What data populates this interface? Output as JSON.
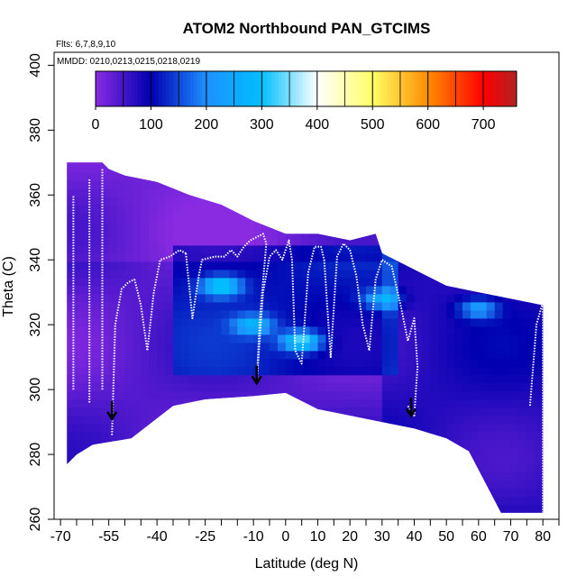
{
  "chart_data": {
    "type": "heatmap",
    "title": "ATOM2 Northbound PAN_GTCIMS",
    "subtitle_flights": "Flts: 6,7,8,9,10",
    "subtitle_dates": "MMDD: 0210,0213,0215,0218,0219",
    "xlabel": "Latitude (deg N)",
    "ylabel": "Theta (C)",
    "xlim": [
      -72,
      85
    ],
    "ylim": [
      260,
      404
    ],
    "x_ticks": [
      -70,
      -55,
      -40,
      -25,
      -10,
      0,
      10,
      20,
      30,
      40,
      50,
      60,
      70,
      80
    ],
    "x_minor_ticks": [
      -65,
      -60,
      -50,
      -45,
      -35,
      -30,
      -20,
      -15,
      -5,
      5,
      15,
      25,
      35,
      45,
      55,
      65,
      75,
      85
    ],
    "y_ticks": [
      260,
      280,
      300,
      320,
      340,
      360,
      380,
      400
    ],
    "colorbar": {
      "min": 0,
      "max": 760,
      "ticks": [
        0,
        100,
        200,
        300,
        400,
        500,
        600,
        700
      ],
      "colors": [
        "#8a2be2",
        "#0000b0",
        "#1e90ff",
        "#00bfff",
        "#ffffff",
        "#ffff66",
        "#ff8c00",
        "#ff0000",
        "#b22222"
      ]
    },
    "boundary": {
      "top": [
        [
          -68,
          370
        ],
        [
          -57,
          370
        ],
        [
          -55,
          368
        ],
        [
          -50,
          366
        ],
        [
          -40,
          364
        ],
        [
          -30,
          360
        ],
        [
          -20,
          357
        ],
        [
          -10,
          352
        ],
        [
          0,
          348
        ],
        [
          10,
          348
        ],
        [
          20,
          346
        ],
        [
          28,
          348
        ],
        [
          30,
          342
        ],
        [
          40,
          337
        ],
        [
          50,
          332
        ],
        [
          60,
          330
        ],
        [
          70,
          328
        ],
        [
          80,
          326
        ]
      ],
      "bottom": [
        [
          -68,
          277
        ],
        [
          -65,
          280
        ],
        [
          -60,
          283
        ],
        [
          -48,
          285
        ],
        [
          -35,
          295
        ],
        [
          -25,
          297
        ],
        [
          -10,
          298
        ],
        [
          0,
          299
        ],
        [
          10,
          294
        ],
        [
          20,
          292
        ],
        [
          30,
          290
        ],
        [
          40,
          288
        ],
        [
          50,
          285
        ],
        [
          57,
          281
        ],
        [
          67,
          262
        ],
        [
          80,
          262
        ]
      ]
    },
    "flight_tracks": [
      [
        [
          -66,
          300
        ],
        [
          -66,
          360
        ]
      ],
      [
        [
          -61,
          296
        ],
        [
          -61,
          365
        ]
      ],
      [
        [
          -57,
          300
        ],
        [
          -57,
          368
        ]
      ],
      [
        [
          -54,
          286
        ],
        [
          -53,
          320
        ],
        [
          -51,
          331
        ],
        [
          -49,
          333
        ],
        [
          -47,
          334
        ]
      ],
      [
        [
          -47,
          334
        ],
        [
          -45,
          326
        ],
        [
          -43,
          312
        ],
        [
          -41,
          330
        ],
        [
          -39,
          340
        ],
        [
          -36,
          341
        ],
        [
          -33,
          343
        ],
        [
          -31,
          342
        ]
      ],
      [
        [
          -31,
          342
        ],
        [
          -29,
          322
        ],
        [
          -27,
          335
        ],
        [
          -26,
          340
        ],
        [
          -22,
          341
        ],
        [
          -19,
          341
        ],
        [
          -17,
          343
        ],
        [
          -15,
          341
        ],
        [
          -13,
          344
        ],
        [
          -11,
          346
        ],
        [
          -9,
          347
        ],
        [
          -7,
          348
        ],
        [
          -6,
          345
        ]
      ],
      [
        [
          -6,
          345
        ],
        [
          -8,
          322
        ],
        [
          -9,
          302
        ],
        [
          -7,
          330
        ],
        [
          -5,
          341
        ],
        [
          -3,
          343
        ],
        [
          -1,
          340
        ],
        [
          1,
          346
        ],
        [
          2,
          340
        ],
        [
          3,
          312
        ],
        [
          5,
          308
        ],
        [
          7,
          336
        ],
        [
          9,
          344
        ],
        [
          11,
          344
        ],
        [
          12,
          340
        ]
      ],
      [
        [
          12,
          340
        ],
        [
          14,
          310
        ],
        [
          16,
          341
        ],
        [
          18,
          345
        ],
        [
          20,
          343
        ],
        [
          22,
          335
        ],
        [
          24,
          320
        ],
        [
          26,
          312
        ],
        [
          28,
          334
        ],
        [
          30,
          340
        ],
        [
          33,
          338
        ],
        [
          36,
          325
        ],
        [
          38,
          315
        ],
        [
          40,
          322
        ],
        [
          41,
          307
        ],
        [
          40,
          292
        ],
        [
          38,
          295
        ]
      ],
      [
        [
          76,
          295
        ],
        [
          78,
          320
        ],
        [
          80,
          327
        ]
      ],
      [
        [
          80,
          262
        ],
        [
          80,
          327
        ]
      ]
    ],
    "hot_spots": [
      {
        "lat": -20,
        "theta": 332,
        "value": 230
      },
      {
        "lat": -10,
        "theta": 320,
        "value": 160
      },
      {
        "lat": 5,
        "theta": 315,
        "value": 250
      },
      {
        "lat": 30,
        "theta": 328,
        "value": 150
      },
      {
        "lat": 60,
        "theta": 325,
        "value": 140
      }
    ],
    "arrows": [
      {
        "lat": -54,
        "theta": 292
      },
      {
        "lat": -9,
        "theta": 303
      },
      {
        "lat": 39,
        "theta": 293
      }
    ]
  }
}
